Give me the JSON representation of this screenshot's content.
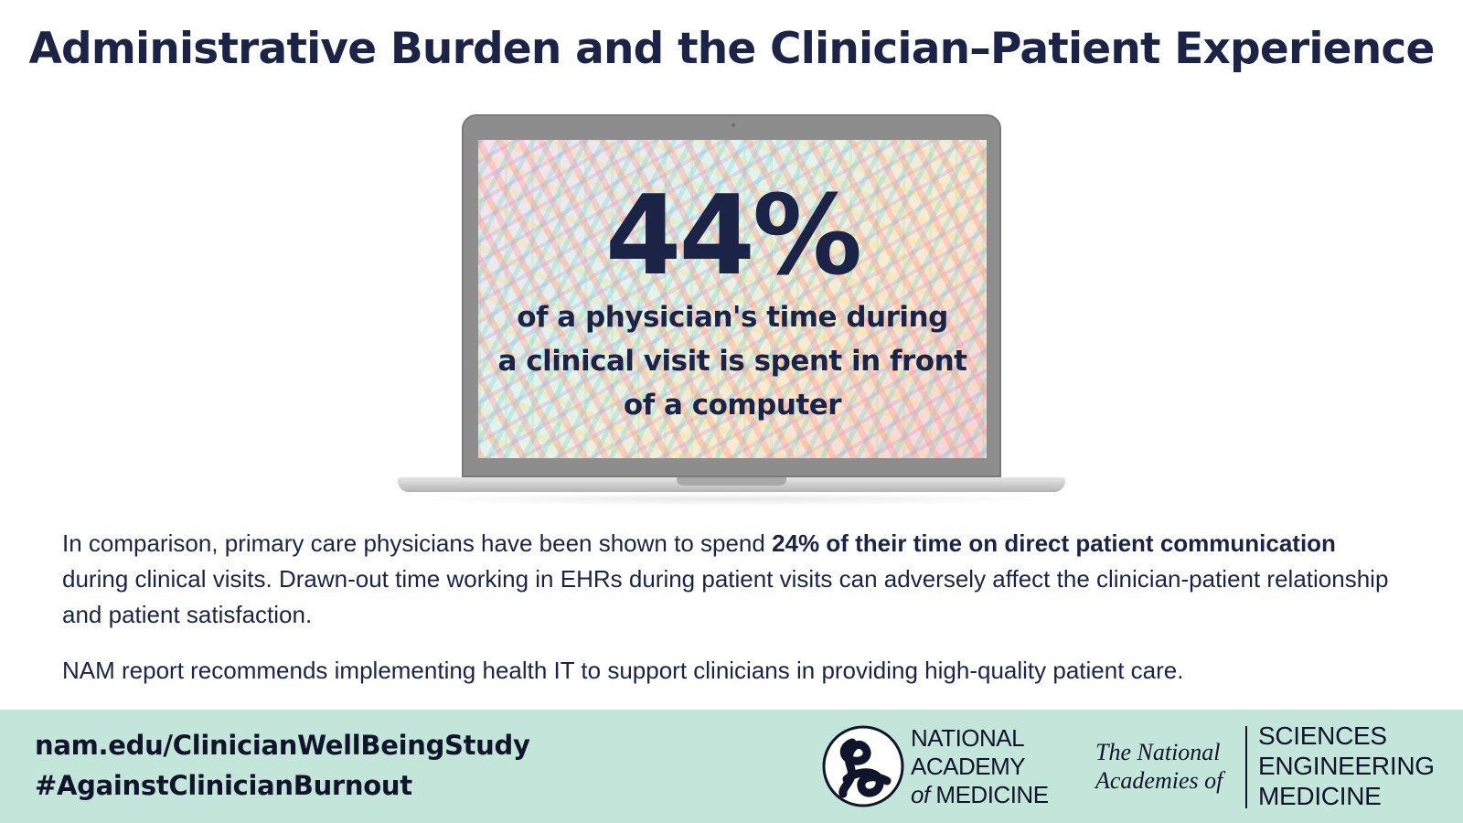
{
  "header": {
    "title": "Administrative Burden and the Clinician–Patient Experience"
  },
  "stat": {
    "value": "44%",
    "caption_lines": [
      "of a physician's time during",
      "a clinical visit is spent in front",
      "of a computer"
    ]
  },
  "body": {
    "p1_intro": "In comparison, primary care physicians have been shown to spend ",
    "p1_bold": "24% of their time on direct patient communication",
    "p1_rest": " during clinical visits. Drawn-out time working in EHRs during patient visits can adversely affect the clinician-patient relationship and patient satisfaction.",
    "p2": "NAM report recommends implementing health IT to support clinicians in providing high-quality patient care."
  },
  "footer": {
    "url": "nam.edu/ClinicianWellBeingStudy",
    "hashtag": "#AgainstClinicianBurnout",
    "nam": {
      "line1": "NATIONAL",
      "line2": "ACADEMY",
      "line3_italic": "of",
      "line3": " MEDICINE"
    },
    "nasem": {
      "left_line1": "The National",
      "left_line2": "Academies of",
      "right_line1": "SCIENCES",
      "right_line2": "ENGINEERING",
      "right_line3": "MEDICINE"
    }
  },
  "colors": {
    "navy": "#1b2447",
    "footer_bg": "#c4e6da",
    "laptop_gray": "#8d8d8d"
  },
  "icons": {
    "nam_logo": "nam-logo-icon"
  }
}
